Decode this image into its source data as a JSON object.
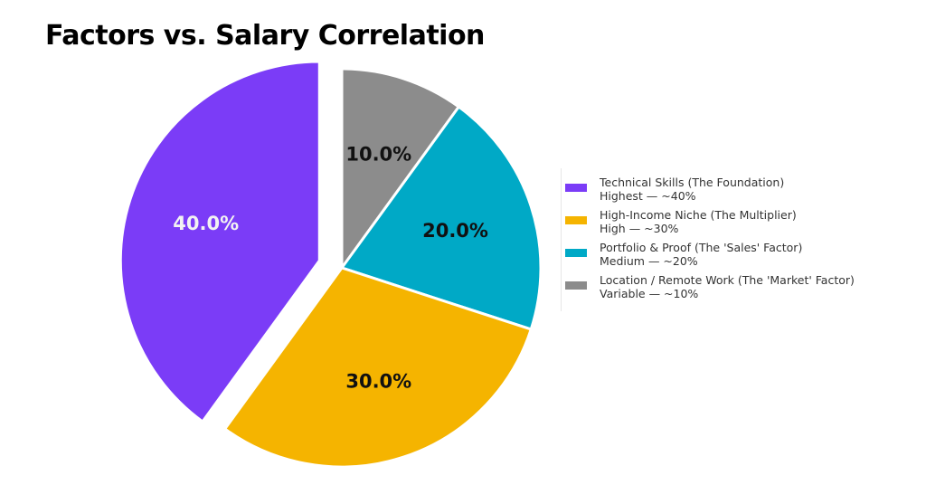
{
  "chart_data": {
    "type": "pie",
    "title": "Factors vs. Salary Correlation",
    "start_angle_deg": 90,
    "direction": "clockwise",
    "legend_position": "right",
    "slices": [
      {
        "value": 10.0,
        "label": "10.0%",
        "legend_line1": "Location / Remote Work (The 'Market' Factor)",
        "legend_line2": "Variable — ~10%",
        "color": "#8c8c8c",
        "label_color": "#111111",
        "exploded": false
      },
      {
        "value": 20.0,
        "label": "20.0%",
        "legend_line1": "Portfolio & Proof (The 'Sales' Factor)",
        "legend_line2": "Medium — ~20%",
        "color": "#00a9c6",
        "label_color": "#111111",
        "exploded": false
      },
      {
        "value": 30.0,
        "label": "30.0%",
        "legend_line1": "High-Income Niche (The Multiplier)",
        "legend_line2": "High — ~30%",
        "color": "#f5b400",
        "label_color": "#111111",
        "exploded": false
      },
      {
        "value": 40.0,
        "label": "40.0%",
        "legend_line1": "Technical Skills (The Foundation)",
        "legend_line2": "Highest — ~40%",
        "color": "#7b3cf7",
        "label_color": "#f2f2f2",
        "exploded": true
      }
    ],
    "legend_order": [
      3,
      2,
      1,
      0
    ]
  }
}
